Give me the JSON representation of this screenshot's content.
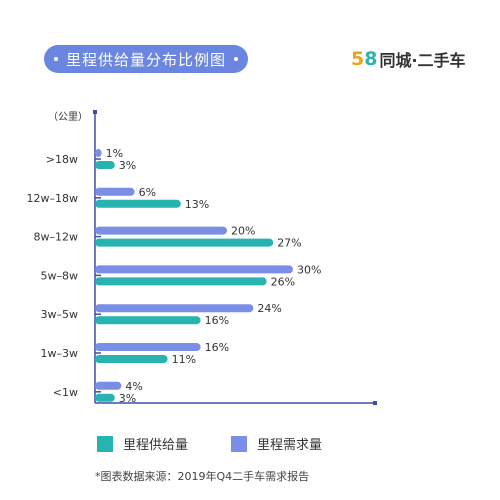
{
  "header": {
    "title": "里程供给量分布比例图",
    "logo_num_5": "5",
    "logo_num_8": "8",
    "logo_text": "同城·二手车"
  },
  "chart_data": {
    "type": "bar",
    "orientation": "horizontal",
    "ylabel": "（公里）",
    "categories": [
      ">18w",
      "12w–18w",
      "8w–12w",
      "5w–8w",
      "3w–5w",
      "1w–3w",
      "<1w"
    ],
    "series": [
      {
        "name": "里程需求量",
        "color": "#7b8ee6",
        "values": [
          1,
          6,
          20,
          30,
          24,
          16,
          4
        ],
        "labels": [
          "1%",
          "6%",
          "20%",
          "30%",
          "24%",
          "16%",
          "4%"
        ]
      },
      {
        "name": "里程供给量",
        "color": "#27b3b0",
        "values": [
          3,
          13,
          27,
          26,
          16,
          11,
          3
        ],
        "labels": [
          "3%",
          "13%",
          "27%",
          "26%",
          "16%",
          "11%",
          "3%"
        ]
      }
    ],
    "unit": "%",
    "xlim": [
      0,
      36
    ],
    "grid": false,
    "legend_position": "bottom"
  },
  "legend": [
    {
      "label": "里程供给量",
      "color": "#27b3b0"
    },
    {
      "label": "里程需求量",
      "color": "#7b8ee6"
    }
  ],
  "source": "*图表数据来源：2019年Q4二手车需求报告",
  "colors": {
    "axis": "#3b4fa8",
    "title_bg": "#6b86e0"
  }
}
